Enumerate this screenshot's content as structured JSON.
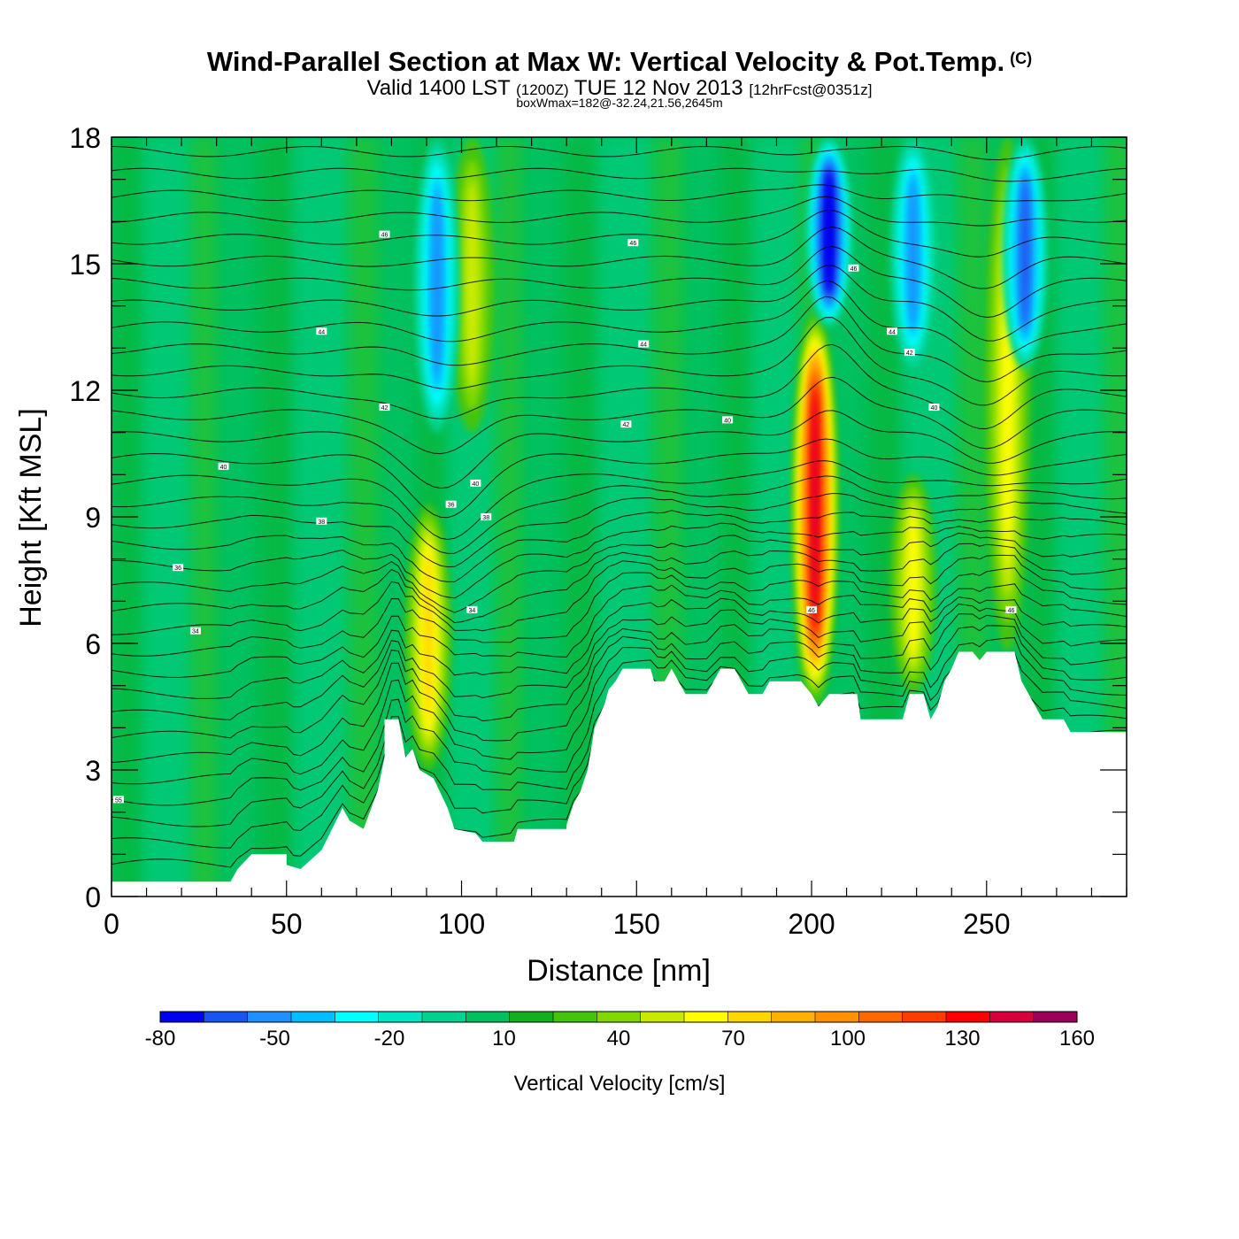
{
  "header": {
    "title_main": "Wind-Parallel Section at Max W: Vertical Velocity & Pot.Temp.",
    "title_copyright": "(C)",
    "subtitle_a": "Valid 1400 LST",
    "subtitle_zulu": "(1200Z)",
    "subtitle_b": "TUE 12 Nov 2013",
    "subtitle_fcst": "[12hrFcst@0351z]",
    "box_info": "boxWmax=182@-32.24,21.56,2645m"
  },
  "chart_data": {
    "type": "heatmap",
    "xlabel": "Distance [nm]",
    "ylabel": "Height [Kft MSL]",
    "xlim": [
      0,
      290
    ],
    "ylim": [
      0,
      18
    ],
    "x_ticks": [
      "0",
      "50",
      "100",
      "150",
      "200",
      "250"
    ],
    "y_ticks": [
      "0",
      "3",
      "6",
      "9",
      "12",
      "15",
      "18"
    ],
    "colorbar": {
      "label": "Vertical Velocity [cm/s]",
      "tick_labels": [
        "-80",
        "-50",
        "-20",
        "10",
        "40",
        "70",
        "100",
        "130",
        "160"
      ],
      "colors": [
        "#0000ee",
        "#1a54f0",
        "#1e90ff",
        "#00bfff",
        "#00ffff",
        "#00e5c4",
        "#00d38f",
        "#00c060",
        "#10b020",
        "#44c40a",
        "#80d800",
        "#c8ea00",
        "#ffff00",
        "#ffd700",
        "#ffb000",
        "#ff9000",
        "#ff6800",
        "#ff3c00",
        "#ff0000",
        "#d8003a",
        "#9c0059"
      ]
    },
    "terrain": [
      [
        0,
        0.35
      ],
      [
        34,
        0.35
      ],
      [
        36,
        0.65
      ],
      [
        40,
        1.0
      ],
      [
        50,
        1.0
      ],
      [
        50,
        0.75
      ],
      [
        54,
        0.65
      ],
      [
        60,
        1.1
      ],
      [
        63,
        1.6
      ],
      [
        66,
        2.1
      ],
      [
        68,
        1.8
      ],
      [
        72,
        1.6
      ],
      [
        76,
        2.5
      ],
      [
        78,
        3.3
      ],
      [
        78,
        4.2
      ],
      [
        82,
        4.2
      ],
      [
        84,
        3.3
      ],
      [
        86,
        3.5
      ],
      [
        88,
        3.0
      ],
      [
        92,
        2.8
      ],
      [
        96,
        2.1
      ],
      [
        98,
        1.6
      ],
      [
        104,
        1.5
      ],
      [
        106,
        1.3
      ],
      [
        115,
        1.3
      ],
      [
        116,
        1.6
      ],
      [
        130,
        1.6
      ],
      [
        130,
        1.7
      ],
      [
        132,
        2.2
      ],
      [
        134,
        2.5
      ],
      [
        136,
        3.0
      ],
      [
        137,
        3.5
      ],
      [
        138,
        4.0
      ],
      [
        140,
        4.4
      ],
      [
        141,
        4.6
      ],
      [
        142,
        4.9
      ],
      [
        144,
        5.1
      ],
      [
        146,
        5.4
      ],
      [
        154,
        5.4
      ],
      [
        155,
        5.1
      ],
      [
        158,
        5.1
      ],
      [
        160,
        5.4
      ],
      [
        162,
        5.1
      ],
      [
        164,
        4.8
      ],
      [
        170,
        4.8
      ],
      [
        172,
        5.1
      ],
      [
        174,
        5.4
      ],
      [
        178,
        5.4
      ],
      [
        180,
        5.1
      ],
      [
        182,
        4.8
      ],
      [
        186,
        4.8
      ],
      [
        188,
        5.1
      ],
      [
        190,
        5.1
      ],
      [
        193,
        5.1
      ],
      [
        197,
        5.1
      ],
      [
        200,
        4.8
      ],
      [
        202,
        4.5
      ],
      [
        205,
        4.8
      ],
      [
        213,
        4.8
      ],
      [
        214,
        4.2
      ],
      [
        226,
        4.2
      ],
      [
        228,
        4.8
      ],
      [
        232,
        4.8
      ],
      [
        234,
        4.2
      ],
      [
        236,
        4.5
      ],
      [
        238,
        5.1
      ],
      [
        240,
        5.4
      ],
      [
        242,
        5.8
      ],
      [
        246,
        5.8
      ],
      [
        248,
        5.6
      ],
      [
        250,
        5.8
      ],
      [
        258,
        5.8
      ],
      [
        260,
        5.1
      ],
      [
        262,
        4.8
      ],
      [
        264,
        4.5
      ],
      [
        266,
        4.2
      ],
      [
        272,
        4.2
      ],
      [
        274,
        3.9
      ],
      [
        290,
        3.9
      ]
    ],
    "updraft_bands": [
      {
        "x": 90.5,
        "w_max": 50,
        "y_range": [
          3.0,
          9.3
        ]
      },
      {
        "x": 201,
        "w_max": 110,
        "y_range": [
          4.6,
          13.8
        ]
      },
      {
        "x": 229,
        "w_max": 40,
        "y_range": [
          4.8,
          10.0
        ]
      },
      {
        "x": 256,
        "w_max": 40,
        "y_range": [
          5.8,
          18.0
        ]
      },
      {
        "x": 103,
        "w_max": 30,
        "y_range": [
          11.0,
          18.0
        ]
      }
    ],
    "downdraft_bands": [
      {
        "x": 93,
        "w_min": -50,
        "y_range": [
          11.0,
          18.0
        ]
      },
      {
        "x": 205,
        "w_min": -80,
        "y_range": [
          13.5,
          18.0
        ]
      },
      {
        "x": 229,
        "w_min": -50,
        "y_range": [
          12.5,
          18.0
        ]
      },
      {
        "x": 261,
        "w_min": -60,
        "y_range": [
          12.5,
          18.0
        ]
      }
    ],
    "theta_labels": [
      {
        "text": "55",
        "x": 2,
        "y": 2.3
      },
      {
        "text": "34",
        "x": 24,
        "y": 6.3
      },
      {
        "text": "36",
        "x": 19,
        "y": 7.8
      },
      {
        "text": "38",
        "x": 60,
        "y": 8.9
      },
      {
        "text": "40",
        "x": 32,
        "y": 10.2
      },
      {
        "text": "42",
        "x": 78,
        "y": 11.6
      },
      {
        "text": "44",
        "x": 60,
        "y": 13.4
      },
      {
        "text": "46",
        "x": 78,
        "y": 15.7
      },
      {
        "text": "40",
        "x": 104,
        "y": 9.8
      },
      {
        "text": "36",
        "x": 97,
        "y": 9.3
      },
      {
        "text": "38",
        "x": 107,
        "y": 9.0
      },
      {
        "text": "34",
        "x": 103,
        "y": 6.8
      },
      {
        "text": "42",
        "x": 147,
        "y": 11.2
      },
      {
        "text": "44",
        "x": 152,
        "y": 13.1
      },
      {
        "text": "46",
        "x": 149,
        "y": 15.5
      },
      {
        "text": "40",
        "x": 176,
        "y": 11.3
      },
      {
        "text": "46",
        "x": 212,
        "y": 14.9
      },
      {
        "text": "44",
        "x": 223,
        "y": 13.4
      },
      {
        "text": "42",
        "x": 228,
        "y": 12.9
      },
      {
        "text": "40",
        "x": 235,
        "y": 11.6
      },
      {
        "text": "46",
        "x": 200,
        "y": 6.8
      },
      {
        "text": "46",
        "x": 257,
        "y": 6.8
      }
    ]
  }
}
